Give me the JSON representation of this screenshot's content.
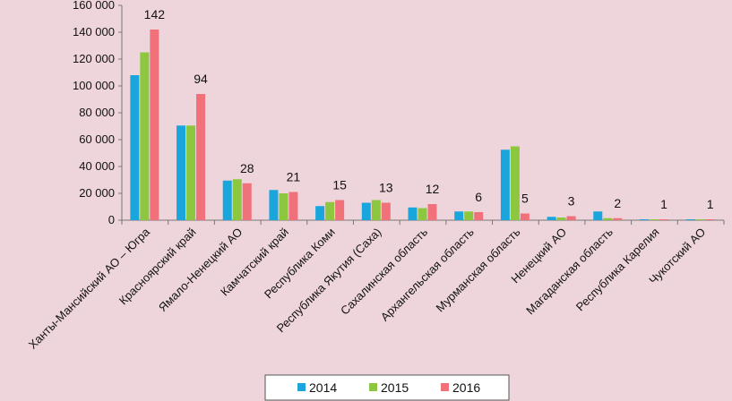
{
  "chart_data": {
    "type": "bar",
    "categories": [
      "Ханты-Мансийский АО – Югра",
      "Красноярский край",
      "Ямало-Ненецкий АО",
      "Камчатский край",
      "Республика Коми",
      "Республика Якутия (Саха)",
      "Сахалинская область",
      "Архангельская область",
      "Мурманская область",
      "Ненецкий АО",
      "Магаданская область",
      "Республика Карелия",
      "Чукотский АО"
    ],
    "series": [
      {
        "name": "2014",
        "color": "#1aa6dc",
        "values": [
          108000,
          70500,
          29500,
          22500,
          10500,
          13000,
          9500,
          6500,
          52500,
          2500,
          6500,
          300,
          300
        ]
      },
      {
        "name": "2015",
        "color": "#8dc63f",
        "values": [
          125000,
          70500,
          30500,
          20000,
          13500,
          15000,
          9000,
          6500,
          55000,
          2000,
          1500,
          300,
          300
        ]
      },
      {
        "name": "2016",
        "color": "#f0717a",
        "values": [
          142000,
          94000,
          27500,
          21000,
          15000,
          13000,
          12000,
          6000,
          5000,
          3000,
          1500,
          500,
          500
        ]
      }
    ],
    "data_labels": [
      "142",
      "94",
      "28",
      "21",
      "15",
      "13",
      "12",
      "6",
      "5",
      "3",
      "2",
      "1",
      "1"
    ],
    "yticks": [
      "0",
      "20 000",
      "40 000",
      "60 000",
      "80 000",
      "100 000",
      "120 000",
      "140 000",
      "160 000"
    ],
    "ylim": [
      0,
      160000
    ],
    "title": "",
    "xlabel": "",
    "ylabel": "",
    "grid": false,
    "legend_position": "bottom"
  }
}
